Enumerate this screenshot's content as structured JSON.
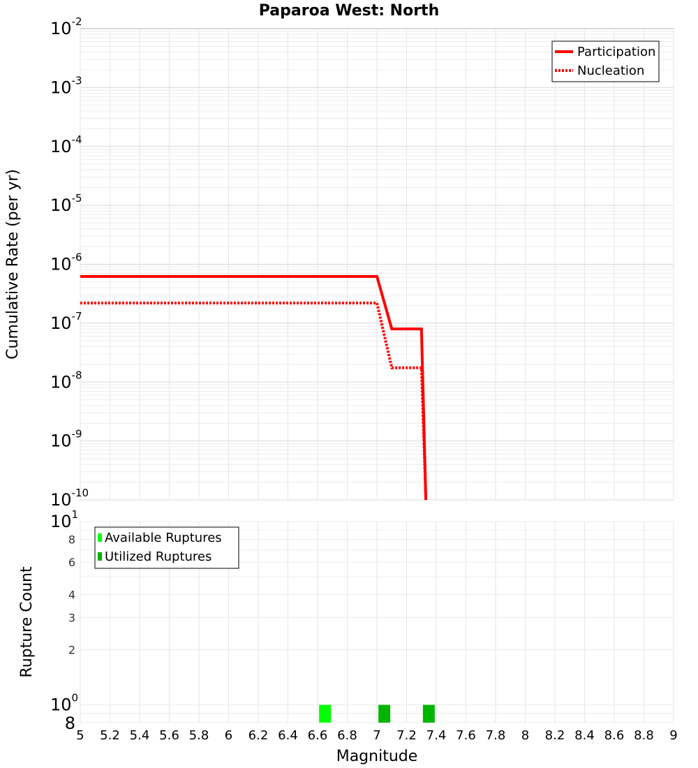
{
  "chart_data": [
    {
      "type": "line",
      "title": "Paparoa West: North",
      "ylabel": "Cumulative Rate (per yr)",
      "xlim": [
        5,
        9
      ],
      "ylim": [
        1e-10,
        0.01
      ],
      "yscale": "log",
      "grid": true,
      "legend_position": "top-right",
      "y_ticks": [
        {
          "base": "10",
          "exp": "-10"
        },
        {
          "base": "10",
          "exp": "-9"
        },
        {
          "base": "10",
          "exp": "-8"
        },
        {
          "base": "10",
          "exp": "-7"
        },
        {
          "base": "10",
          "exp": "-6"
        },
        {
          "base": "10",
          "exp": "-5"
        },
        {
          "base": "10",
          "exp": "-4"
        },
        {
          "base": "10",
          "exp": "-3"
        },
        {
          "base": "10",
          "exp": "-2"
        }
      ],
      "series": [
        {
          "name": "Participation",
          "color": "#ff0000",
          "style": "solid",
          "x": [
            5.0,
            7.0,
            7.1,
            7.3,
            7.33
          ],
          "y": [
            6.2e-07,
            6.2e-07,
            8e-08,
            8e-08,
            1e-10
          ]
        },
        {
          "name": "Nucleation",
          "color": "#ff0000",
          "style": "dotted",
          "x": [
            5.0,
            7.0,
            7.1,
            7.3,
            7.33
          ],
          "y": [
            2.2e-07,
            2.2e-07,
            1.75e-08,
            1.75e-08,
            1e-10
          ]
        }
      ]
    },
    {
      "type": "bar",
      "xlabel": "Magnitude",
      "ylabel": "Rupture Count",
      "xlim": [
        5,
        9
      ],
      "ylim": [
        0.8,
        10
      ],
      "yscale": "log",
      "grid": true,
      "legend_position": "top-left",
      "x_ticks": [
        "5",
        "5.2",
        "5.4",
        "5.6",
        "5.8",
        "6",
        "6.2",
        "6.4",
        "6.6",
        "6.8",
        "7",
        "7.2",
        "7.4",
        "7.6",
        "7.8",
        "8",
        "8.2",
        "8.4",
        "8.6",
        "8.8",
        "9"
      ],
      "y_ticks_minor": [
        "8",
        "6",
        "4",
        "3",
        "2"
      ],
      "y_tick_top": {
        "base": "10",
        "exp": "1"
      },
      "y_tick_mid": {
        "base": "10",
        "exp": "0"
      },
      "y_tick_bottom": "8",
      "series": [
        {
          "name": "Available Ruptures",
          "color": "#00ff00",
          "x": [
            6.65
          ],
          "values": [
            1
          ]
        },
        {
          "name": "Utilized Ruptures",
          "color": "#00b400",
          "x": [
            7.05,
            7.35
          ],
          "values": [
            1,
            1
          ]
        }
      ]
    }
  ]
}
